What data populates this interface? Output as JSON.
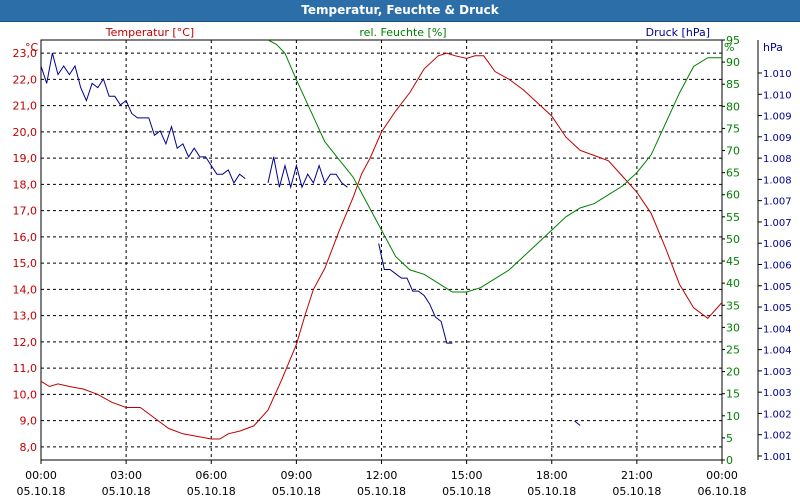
{
  "chart_data": {
    "type": "line",
    "title": "Temperatur, Feuchte & Druck",
    "x_ticks": [
      {
        "time": "00:00",
        "date": "05.10.18"
      },
      {
        "time": "03:00",
        "date": "05.10.18"
      },
      {
        "time": "06:00",
        "date": "05.10.18"
      },
      {
        "time": "09:00",
        "date": "05.10.18"
      },
      {
        "time": "12:00",
        "date": "05.10.18"
      },
      {
        "time": "15:00",
        "date": "05.10.18"
      },
      {
        "time": "18:00",
        "date": "05.10.18"
      },
      {
        "time": "21:00",
        "date": "05.10.18"
      },
      {
        "time": "00:00",
        "date": "06.10.18"
      }
    ],
    "xlim_hours": [
      0,
      24
    ],
    "grid": true,
    "axes": {
      "temperature": {
        "label": "Temperatur [°C]",
        "unit": "°C",
        "color": "#c00000",
        "ylim": [
          7.5,
          23.5
        ],
        "ticks": [
          "8,0",
          "9,0",
          "10,0",
          "11,0",
          "12,0",
          "13,0",
          "14,0",
          "15,0",
          "16,0",
          "17,0",
          "18,0",
          "19,0",
          "20,0",
          "21,0",
          "22,0",
          "23,0"
        ]
      },
      "humidity": {
        "label": "rel. Feuchte [%]",
        "unit": "%",
        "color": "#008000",
        "ylim": [
          0,
          95
        ],
        "ticks": [
          "0",
          "5",
          "10",
          "15",
          "20",
          "25",
          "30",
          "35",
          "40",
          "45",
          "50",
          "55",
          "60",
          "65",
          "70",
          "75",
          "80",
          "85",
          "90",
          "95"
        ]
      },
      "pressure": {
        "label": "Druck [hPa]",
        "unit": "hPa",
        "color": "#000090",
        "ylim": [
          1001.0,
          1010.7
        ],
        "ticks": [
          "1.001",
          "1.002",
          "1.002",
          "1.003",
          "1.003",
          "1.004",
          "1.004",
          "1.005",
          "1.005",
          "1.006",
          "1.006",
          "1.007",
          "1.007",
          "1.008",
          "1.008",
          "1.009",
          "1.009",
          "1.010",
          "1.010"
        ]
      }
    },
    "series": [
      {
        "name": "Temperatur [°C]",
        "axis": "temperature",
        "color": "#c00000",
        "x": [
          0,
          0.3,
          0.6,
          1,
          1.5,
          2,
          2.5,
          3,
          3.5,
          4,
          4.5,
          5,
          5.5,
          6,
          6.3,
          6.6,
          7,
          7.5,
          8,
          8.5,
          9,
          9.3,
          9.6,
          10,
          10.5,
          11,
          11.3,
          11.6,
          12,
          12.5,
          13,
          13.5,
          14,
          14.3,
          14.6,
          15,
          15.3,
          15.6,
          16,
          16.5,
          17,
          17.5,
          18,
          18.5,
          19,
          19.5,
          20,
          20.5,
          21,
          21.5,
          22,
          22.5,
          23,
          23.5,
          24
        ],
        "values": [
          10.5,
          10.3,
          10.4,
          10.3,
          10.2,
          10.0,
          9.7,
          9.5,
          9.5,
          9.1,
          8.7,
          8.5,
          8.4,
          8.3,
          8.3,
          8.5,
          8.6,
          8.8,
          9.4,
          10.6,
          11.9,
          13.0,
          14.0,
          14.8,
          16.2,
          17.5,
          18.4,
          19.0,
          20.0,
          20.8,
          21.5,
          22.4,
          22.9,
          23.0,
          22.9,
          22.8,
          22.9,
          22.9,
          22.3,
          22.0,
          21.6,
          21.1,
          20.6,
          19.8,
          19.3,
          19.1,
          18.9,
          18.3,
          17.7,
          16.9,
          15.6,
          14.2,
          13.3,
          12.9,
          13.5
        ]
      },
      {
        "name": "rel. Feuchte [%]",
        "axis": "humidity",
        "color": "#008000",
        "x": [
          8,
          8.3,
          8.6,
          9,
          9.5,
          10,
          10.5,
          11,
          11.5,
          12,
          12.5,
          13,
          13.5,
          14,
          14.5,
          15,
          15.5,
          16,
          16.5,
          17,
          17.5,
          18,
          18.5,
          19,
          19.5,
          20,
          20.5,
          21,
          21.5,
          22,
          22.5,
          23,
          23.5,
          24
        ],
        "values": [
          95,
          94,
          92,
          86,
          79,
          72,
          68,
          64,
          58,
          52,
          46,
          43,
          42,
          40,
          38,
          38,
          39,
          41,
          43,
          46,
          49,
          52,
          55,
          57,
          58,
          60,
          62,
          65,
          69,
          76,
          83,
          89,
          91,
          91
        ]
      },
      {
        "name": "Druck [hPa]",
        "axis": "pressure",
        "color": "#000090",
        "segments": [
          {
            "x": [
              0,
              0.2,
              0.4,
              0.6,
              0.8,
              1,
              1.2,
              1.4,
              1.6,
              1.8,
              2.0,
              2.2,
              2.4,
              2.6,
              2.8,
              3.0,
              3.2,
              3.4,
              3.6,
              3.8,
              4.0,
              4.2,
              4.4,
              4.6,
              4.8,
              5.0,
              5.2,
              5.4,
              5.6,
              5.8,
              6.0,
              6.2,
              6.4,
              6.6,
              6.8,
              7.0,
              7.2
            ],
            "values": [
              1010.1,
              1009.7,
              1010.4,
              1009.9,
              1010.1,
              1009.9,
              1010.1,
              1009.6,
              1009.3,
              1009.7,
              1009.6,
              1009.8,
              1009.4,
              1009.4,
              1009.2,
              1009.3,
              1009.0,
              1008.9,
              1008.9,
              1008.9,
              1008.5,
              1008.6,
              1008.3,
              1008.7,
              1008.2,
              1008.3,
              1008.0,
              1008.2,
              1008.0,
              1008.0,
              1007.8,
              1007.6,
              1007.6,
              1007.7,
              1007.4,
              1007.6,
              1007.5
            ]
          },
          {
            "x": [
              8.0,
              8.2,
              8.4,
              8.6,
              8.8,
              9.0,
              9.2,
              9.4,
              9.6,
              9.8,
              10.0,
              10.2,
              10.4,
              10.6,
              10.8
            ],
            "values": [
              1007.4,
              1008.0,
              1007.3,
              1007.8,
              1007.3,
              1007.8,
              1007.3,
              1007.6,
              1007.4,
              1007.8,
              1007.4,
              1007.6,
              1007.6,
              1007.4,
              1007.3
            ]
          },
          {
            "x": [
              11.9,
              12.1,
              12.3,
              12.5,
              12.7,
              12.9,
              13.1,
              13.3,
              13.5,
              13.7,
              13.9,
              14.1,
              14.3,
              14.5
            ],
            "values": [
              1006.0,
              1005.4,
              1005.4,
              1005.3,
              1005.2,
              1005.2,
              1004.9,
              1004.9,
              1004.8,
              1004.6,
              1004.3,
              1004.2,
              1003.7,
              1003.7
            ]
          },
          {
            "x": [
              18.8,
              19.0
            ],
            "values": [
              1001.9,
              1001.8
            ]
          }
        ]
      }
    ]
  }
}
